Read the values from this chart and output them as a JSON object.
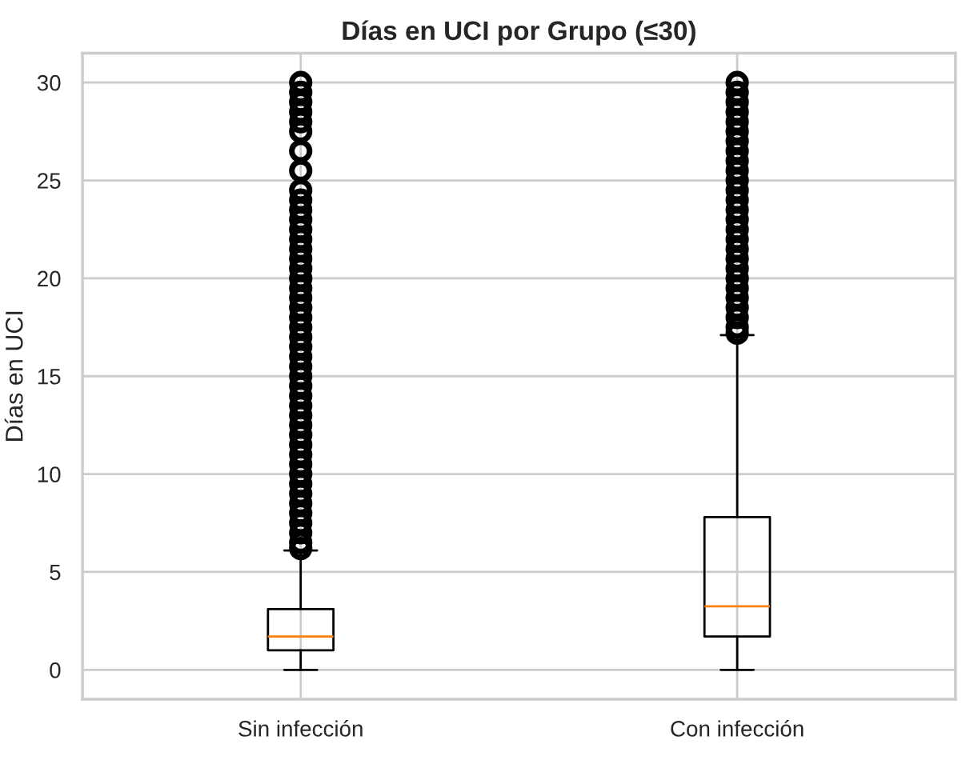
{
  "chart_data": {
    "type": "box",
    "title": "Días en UCI por Grupo (≤30)",
    "ylabel": "Días en UCI",
    "categories": [
      "Sin infección",
      "Con infección"
    ],
    "boxes": [
      {
        "low": 0,
        "q1": 1.0,
        "median": 1.7,
        "q3": 3.1,
        "high": 6.1,
        "outliers": [
          6.2,
          6.5,
          7,
          7.5,
          8,
          8.5,
          9,
          9.5,
          10,
          10.5,
          11,
          11.5,
          12,
          12.5,
          13,
          13.5,
          14,
          14.5,
          15,
          15.5,
          16,
          16.5,
          17,
          17.5,
          18,
          18.5,
          19,
          19.5,
          20,
          20.5,
          21,
          21.5,
          22,
          22.5,
          23,
          23.5,
          24,
          24.5,
          25.5,
          26.5,
          27.5,
          28,
          28.5,
          29,
          29.5,
          30
        ]
      },
      {
        "low": 0,
        "q1": 1.7,
        "median": 3.25,
        "q3": 7.8,
        "high": 17.1,
        "outliers": [
          17.2,
          17.5,
          18,
          18.5,
          19,
          19.5,
          20,
          20.5,
          21,
          21.5,
          22,
          22.5,
          23,
          23.5,
          24,
          24.5,
          25,
          25.5,
          26,
          26.5,
          27,
          27.5,
          28,
          28.5,
          29,
          29.5,
          30
        ]
      }
    ],
    "ylim": [
      -1.5,
      31.5
    ],
    "yticks": [
      0,
      5,
      10,
      15,
      20,
      25,
      30
    ],
    "grid": true
  }
}
